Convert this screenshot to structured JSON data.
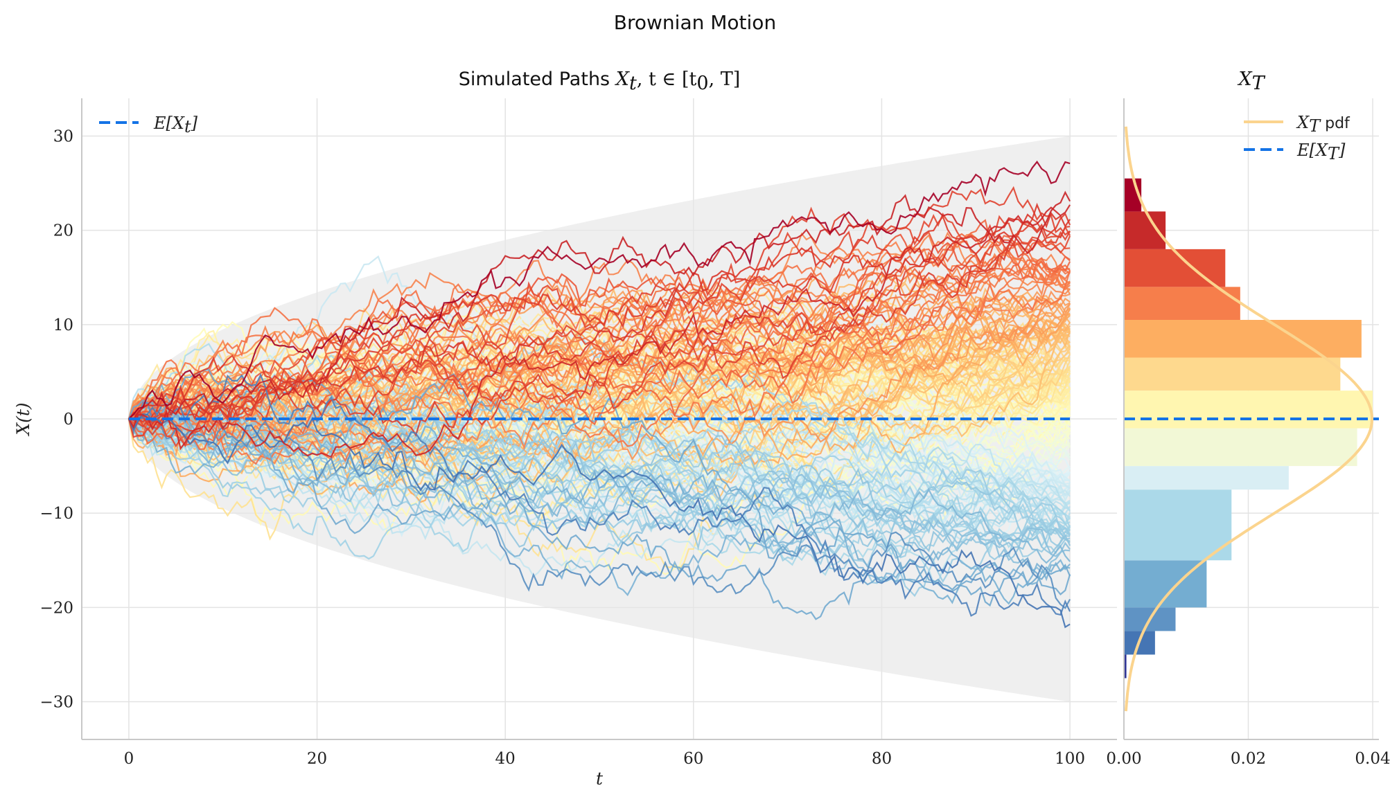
{
  "figure": {
    "suptitle": "Brownian Motion"
  },
  "chart_data": [
    {
      "panel": "paths",
      "type": "line",
      "title_text": "Simulated Paths",
      "title_math_var": "X",
      "title_math_sub": "t",
      "title_math_rest": ", t ∈ [t",
      "title_math_sub2": "0",
      "title_math_end": ", T]",
      "xlabel": "t",
      "ylabel": "X(t)",
      "xlim": [
        -5,
        105
      ],
      "ylim": [
        -34,
        34
      ],
      "xticks": [
        0,
        20,
        40,
        60,
        80,
        100
      ],
      "xtick_labels": [
        "0",
        "20",
        "40",
        "60",
        "80",
        "100"
      ],
      "yticks": [
        -30,
        -20,
        -10,
        0,
        10,
        20,
        30
      ],
      "ytick_labels": [
        "−30",
        "−20",
        "−10",
        "0",
        "10",
        "20",
        "30"
      ],
      "grid": true,
      "n_paths": 200,
      "t_range": [
        0,
        100
      ],
      "envelope": "±3·sqrt(t)",
      "envelope_max": 30,
      "mean_line": {
        "value": 0,
        "style": "dashed",
        "color": "#1473e6"
      },
      "legend": {
        "position": "top-left",
        "entries": [
          {
            "label_var": "E[X",
            "label_sub": "t",
            "label_end": "]",
            "style": "dashed",
            "color": "#1473e6"
          }
        ]
      },
      "colormap": "RdYlBu_r (colored by final value X_T)"
    },
    {
      "panel": "terminal_distribution",
      "type": "bar",
      "orientation": "horizontal",
      "title_var": "X",
      "title_sub": "T",
      "xlim": [
        0,
        0.041
      ],
      "ylim": [
        -34,
        34
      ],
      "xticks": [
        0.0,
        0.02,
        0.04
      ],
      "xtick_labels": [
        "0.00",
        "0.02",
        "0.04"
      ],
      "grid": true,
      "bins": [
        {
          "low": -27.5,
          "high": -25.0,
          "density": 0.0004,
          "color": "#313695"
        },
        {
          "low": -25.0,
          "high": -22.5,
          "density": 0.005,
          "color": "#4575b4"
        },
        {
          "low": -22.5,
          "high": -20.0,
          "density": 0.0083,
          "color": "#5f93c4"
        },
        {
          "low": -20.0,
          "high": -15.0,
          "density": 0.0133,
          "color": "#74add1"
        },
        {
          "low": -15.0,
          "high": -7.5,
          "density": 0.0173,
          "color": "#abd9e9"
        },
        {
          "low": -7.5,
          "high": -5.0,
          "density": 0.0265,
          "color": "#d9eef4"
        },
        {
          "low": -5.0,
          "high": -1.0,
          "density": 0.0375,
          "color": "#f2f8d6"
        },
        {
          "low": -1.0,
          "high": 3.0,
          "density": 0.04,
          "color": "#fff6b0"
        },
        {
          "low": 3.0,
          "high": 6.5,
          "density": 0.0348,
          "color": "#fed98e"
        },
        {
          "low": 6.5,
          "high": 10.5,
          "density": 0.0382,
          "color": "#fdae61"
        },
        {
          "low": 10.5,
          "high": 14.0,
          "density": 0.0187,
          "color": "#f67e4b"
        },
        {
          "low": 14.0,
          "high": 18.0,
          "density": 0.0163,
          "color": "#e34f36"
        },
        {
          "low": 18.0,
          "high": 22.0,
          "density": 0.0067,
          "color": "#c62a2a"
        },
        {
          "low": 22.0,
          "high": 25.5,
          "density": 0.0028,
          "color": "#a50026"
        }
      ],
      "pdf": {
        "type": "normal",
        "mean": 0,
        "std": 10,
        "color": "#fbd48e",
        "y_range": [
          -31,
          31
        ]
      },
      "mean_line": {
        "value": 0,
        "style": "dashed",
        "color": "#1473e6"
      },
      "legend": {
        "position": "top-right",
        "entries": [
          {
            "label_var": "X",
            "label_sub": "T",
            "label_end": " pdf",
            "style": "solid",
            "color": "#fbd48e"
          },
          {
            "label_var": "E[X",
            "label_sub": "T",
            "label_end": "]",
            "style": "dashed",
            "color": "#1473e6"
          }
        ]
      }
    }
  ]
}
